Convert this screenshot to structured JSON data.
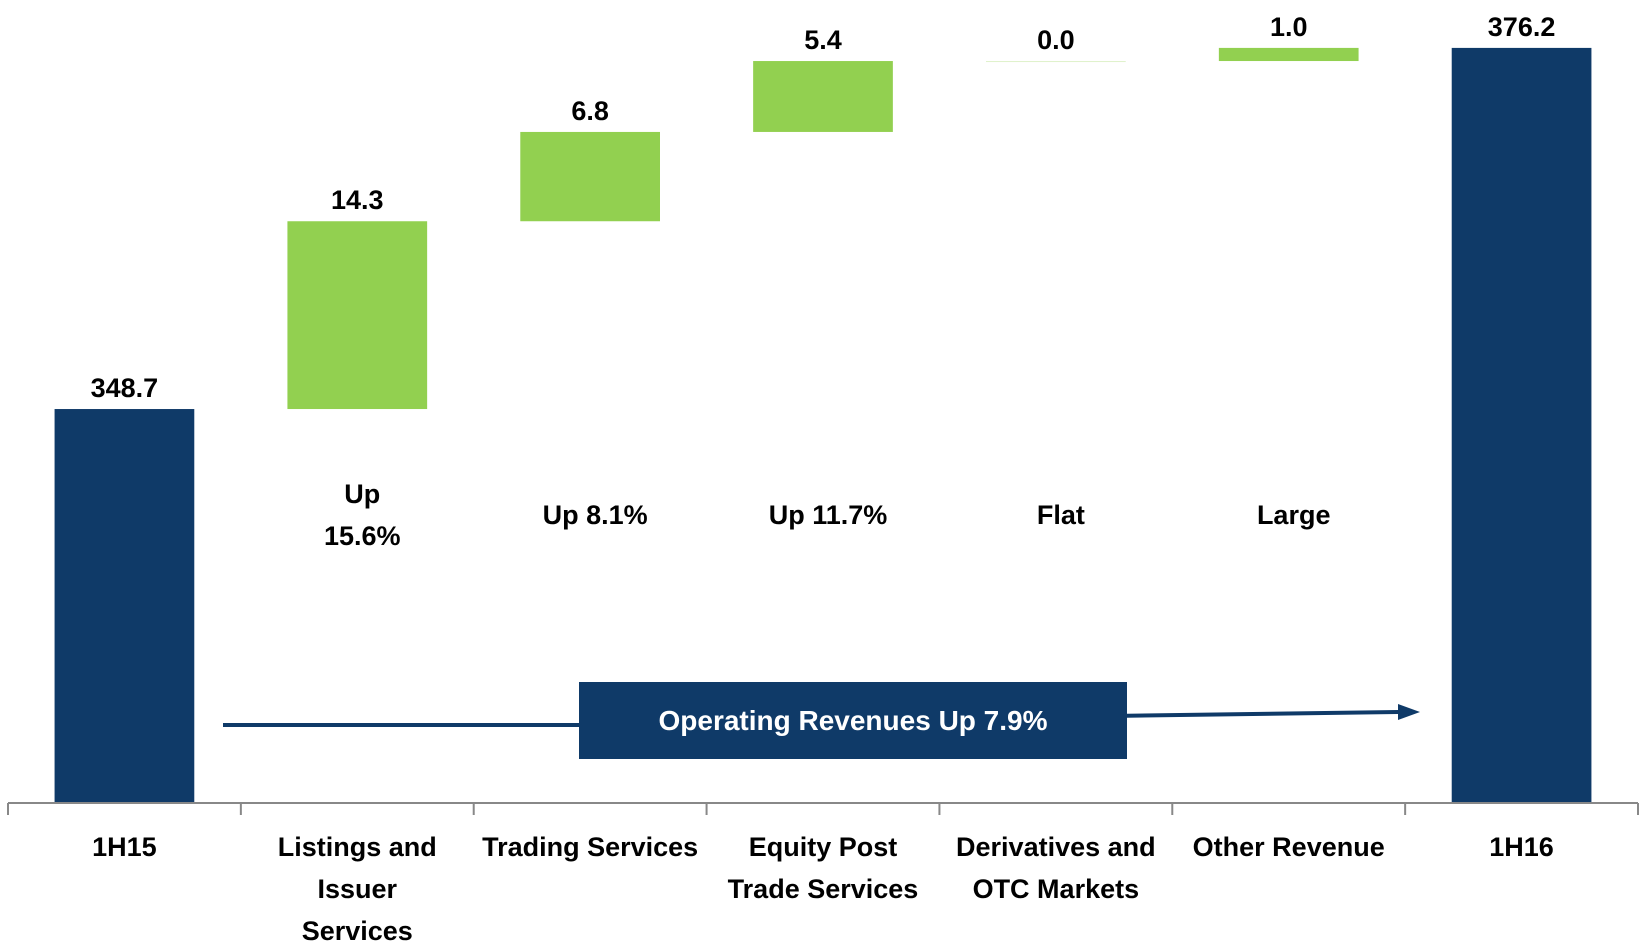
{
  "chart_data": {
    "type": "waterfall",
    "categories": [
      "1H15",
      "Listings and Issuer Services",
      "Trading Services",
      "Equity Post Trade Services",
      "Derivatives and OTC Markets",
      "Other Revenue",
      "1H16"
    ],
    "values": [
      348.7,
      14.3,
      6.8,
      5.4,
      0.0,
      1.0,
      376.2
    ],
    "value_labels": [
      "348.7",
      "14.3",
      "6.8",
      "5.4",
      "0.0",
      "1.0",
      "376.2"
    ],
    "measures": [
      "total",
      "relative",
      "relative",
      "relative",
      "relative",
      "relative",
      "total"
    ],
    "change_labels": [
      null,
      "Up 15.6%",
      "Up 8.1%",
      "Up 11.7%",
      "Flat",
      "Large",
      null
    ],
    "callout": "Operating Revenues Up 7.9%",
    "total_color": "#0f3a68",
    "increase_color": "#92d050",
    "ylim": [
      318.7,
      380
    ]
  }
}
